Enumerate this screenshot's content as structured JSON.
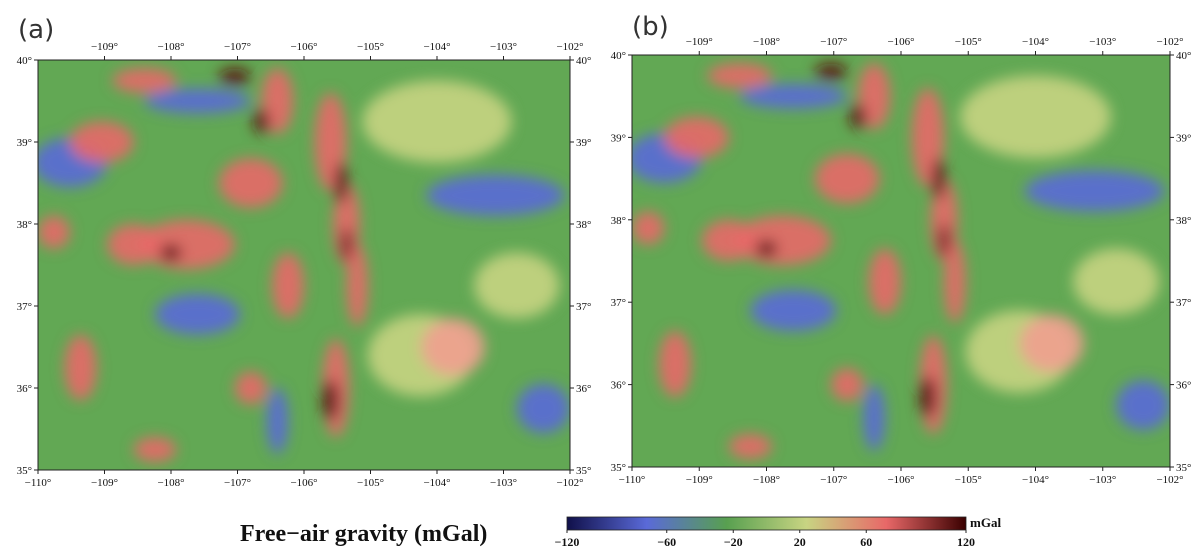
{
  "map": {
    "xlim": [
      -110,
      -102
    ],
    "ylim": [
      35,
      40
    ],
    "xticks": [
      {
        "value": -110,
        "label": "−110°"
      },
      {
        "value": -109,
        "label": "−109°"
      },
      {
        "value": -108,
        "label": "−108°"
      },
      {
        "value": -107,
        "label": "−107°"
      },
      {
        "value": -106,
        "label": "−106°"
      },
      {
        "value": -105,
        "label": "−105°"
      },
      {
        "value": -104,
        "label": "−104°"
      },
      {
        "value": -103,
        "label": "−103°"
      },
      {
        "value": -102,
        "label": "−102°"
      }
    ],
    "yticks": [
      {
        "value": 35,
        "label": "35°"
      },
      {
        "value": 36,
        "label": "36°"
      },
      {
        "value": 37,
        "label": "37°"
      },
      {
        "value": 38,
        "label": "38°"
      },
      {
        "value": 39,
        "label": "39°"
      },
      {
        "value": 40,
        "label": "40°"
      }
    ]
  },
  "panels": [
    {
      "label": "(a)"
    },
    {
      "label": "(b)"
    }
  ],
  "colorbar": {
    "title": "Free−air gravity (mGal)",
    "unit": "mGal",
    "lim": [
      -120,
      120
    ],
    "colors": [
      "#10104a",
      "#5a6ad8",
      "#58a050",
      "#c8d482",
      "#e86868",
      "#3a0000"
    ],
    "ticks": [
      {
        "value": -120,
        "label": "−120"
      },
      {
        "value": -60,
        "label": "−60"
      },
      {
        "value": -20,
        "label": "−20"
      },
      20,
      60,
      120
    ]
  }
}
